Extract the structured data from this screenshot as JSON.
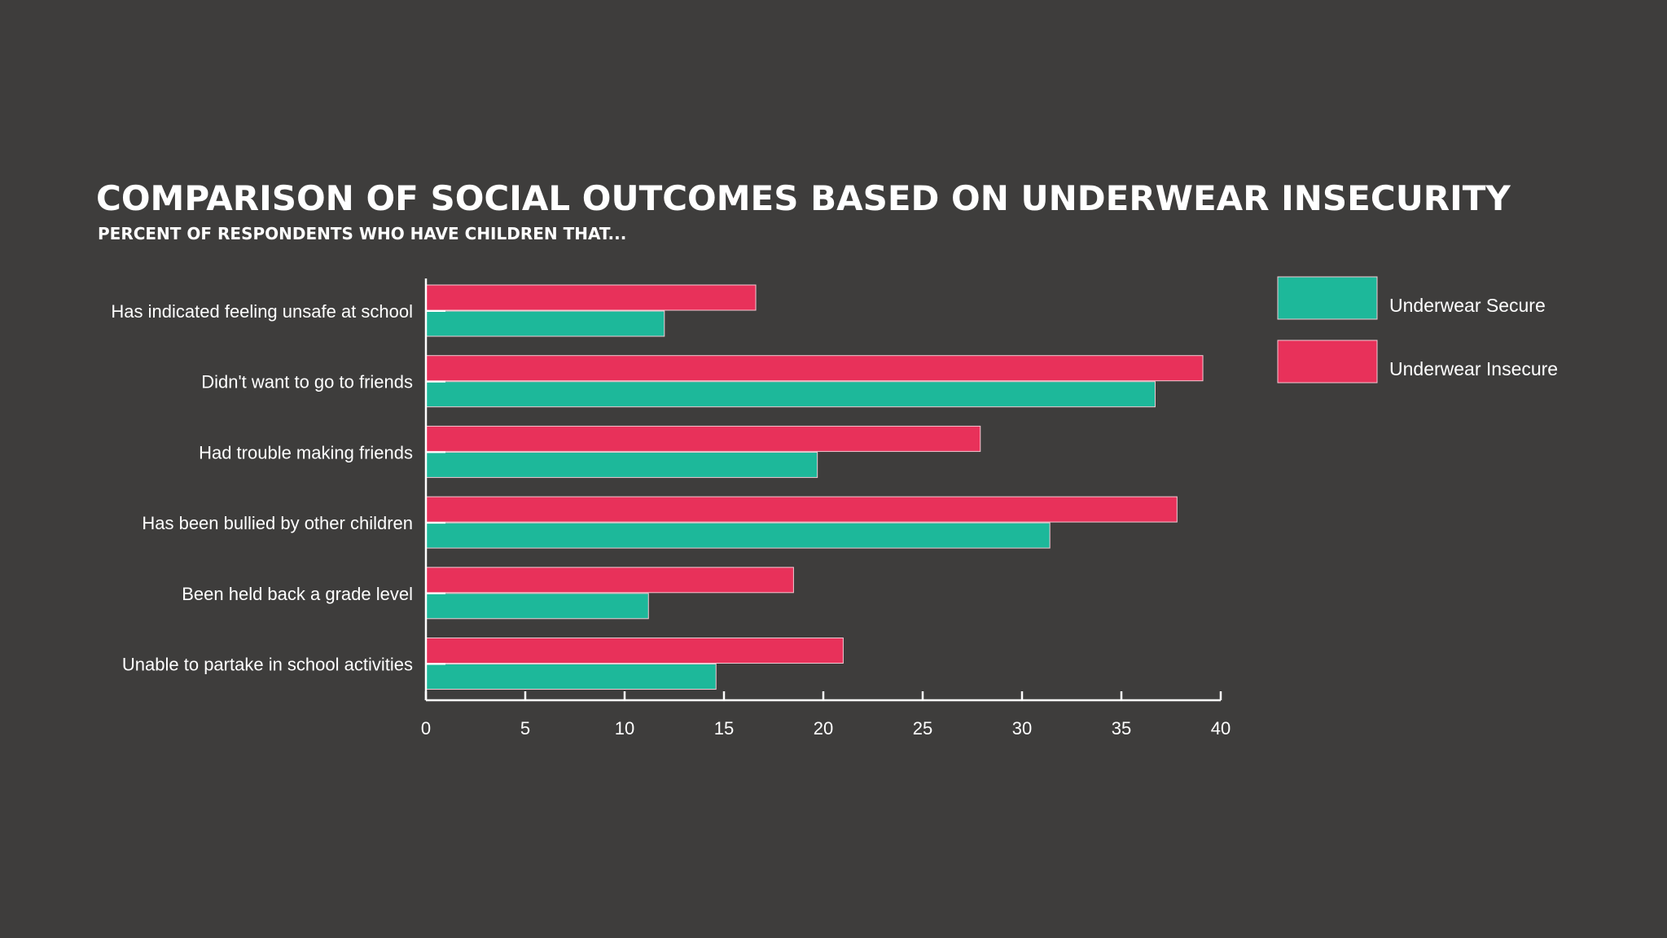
{
  "chart_data": {
    "type": "bar",
    "orientation": "horizontal",
    "title": "COMPARISON OF SOCIAL OUTCOMES BASED ON UNDERWEAR INSECURITY",
    "subtitle": "PERCENT OF RESPONDENTS WHO HAVE CHILDREN THAT...",
    "categories": [
      "Has indicated feeling unsafe at school",
      "Didn't want to go to friends",
      "Had trouble making friends",
      "Has been bullied by other children",
      "Been held back a grade level",
      "Unable to partake in school activities"
    ],
    "series": [
      {
        "name": "Underwear Insecure",
        "color": "#e8315a",
        "values": [
          16.6,
          39.1,
          27.9,
          37.8,
          18.5,
          21.0
        ]
      },
      {
        "name": "Underwear Secure",
        "color": "#1db89a",
        "values": [
          12.0,
          36.7,
          19.7,
          31.4,
          11.2,
          14.6
        ]
      }
    ],
    "xlim": [
      0,
      40
    ],
    "ticks": [
      0,
      5,
      10,
      15,
      20,
      25,
      30,
      35,
      40
    ],
    "grid": false,
    "legend_position": "top-right",
    "legend": [
      {
        "name": "Underwear Secure",
        "color": "#1db89a"
      },
      {
        "name": "Underwear Insecure",
        "color": "#e8315a"
      }
    ]
  }
}
